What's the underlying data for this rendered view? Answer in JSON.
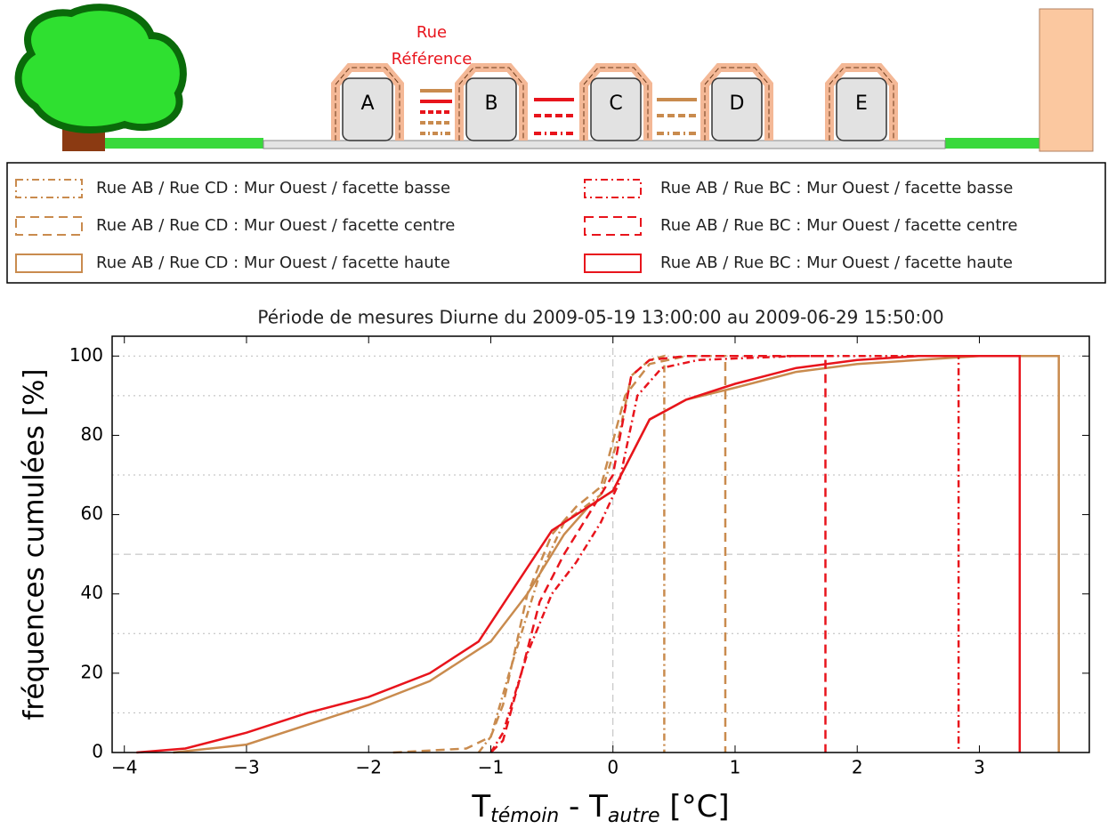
{
  "illustration": {
    "caption": [
      "Rue",
      "Référence"
    ],
    "buildings": [
      "A",
      "B",
      "C",
      "D",
      "E"
    ]
  },
  "chart_data": {
    "type": "line",
    "title": "Période de mesures Diurne du 2009-05-19 13:00:00 au 2009-06-29 15:50:00",
    "ylabel": "fréquences cumulées [%]",
    "xlabel": [
      "T",
      "témoin",
      " - T",
      "autre",
      " [°C]"
    ],
    "xlim": [
      -4.1,
      3.9
    ],
    "ylim": [
      0,
      105
    ],
    "xticks": [
      {
        "value": -4,
        "label": "−4"
      },
      {
        "value": -3,
        "label": "−3"
      },
      {
        "value": -2,
        "label": "−2"
      },
      {
        "value": -1,
        "label": "−1"
      },
      0,
      1,
      2,
      3
    ],
    "yticks": [
      0,
      20,
      40,
      60,
      80,
      100
    ],
    "grid_y": [
      10,
      30,
      70,
      90,
      100
    ],
    "reference_y": 50,
    "reference_x": 0,
    "series": [
      {
        "name": "Rue AB / Rue CD : Mur Ouest / facette basse",
        "color": "#c98b4e",
        "style": "dotted",
        "x": [
          -1.1,
          -1,
          -0.85,
          -0.6,
          -0.4,
          -0.1,
          0.05,
          0.15,
          0.3,
          0.42,
          0.42
        ],
        "values": [
          0,
          4,
          20,
          45,
          58,
          65,
          80,
          95,
          99,
          100,
          0
        ]
      },
      {
        "name": "Rue AB / Rue CD : Mur Ouest / facette centre",
        "color": "#c98b4e",
        "style": "dashed",
        "x": [
          -1.8,
          -1.2,
          -1,
          -0.9,
          -0.7,
          -0.5,
          -0.3,
          -0.1,
          0.1,
          0.3,
          0.6,
          0.92,
          0.92
        ],
        "values": [
          0,
          1,
          4,
          12,
          40,
          55,
          62,
          67,
          90,
          98,
          100,
          100,
          0
        ]
      },
      {
        "name": "Rue AB / Rue CD : Mur Ouest / facette haute",
        "color": "#c98b4e",
        "style": "solid",
        "x": [
          -3.6,
          -3,
          -2.5,
          -2,
          -1.5,
          -1,
          -0.7,
          -0.4,
          -0.2,
          0,
          0.3,
          0.6,
          1,
          1.5,
          2,
          3,
          3.65,
          3.65
        ],
        "values": [
          0,
          2,
          7,
          12,
          18,
          28,
          40,
          55,
          62,
          66,
          84,
          89,
          92,
          96,
          98,
          100,
          100,
          0
        ]
      },
      {
        "name": "Rue AB / Rue BC : Mur Ouest / facette basse",
        "color": "#e8141c",
        "style": "dotted",
        "x": [
          -1,
          -0.9,
          -0.7,
          -0.5,
          -0.3,
          -0.1,
          0.05,
          0.2,
          0.4,
          0.7,
          1.5,
          2.83,
          2.83
        ],
        "values": [
          0,
          5,
          25,
          40,
          48,
          58,
          68,
          90,
          97,
          99,
          100,
          100,
          0
        ]
      },
      {
        "name": "Rue AB / Rue BC : Mur Ouest / facette centre",
        "color": "#e8141c",
        "style": "dashed",
        "x": [
          -1,
          -0.9,
          -0.75,
          -0.6,
          -0.4,
          -0.2,
          0,
          0.15,
          0.3,
          0.6,
          1.74,
          1.74
        ],
        "values": [
          0,
          3,
          20,
          38,
          50,
          60,
          70,
          95,
          99,
          100,
          100,
          0
        ]
      },
      {
        "name": "Rue AB / Rue BC : Mur Ouest / facette haute",
        "color": "#e8141c",
        "style": "solid",
        "x": [
          -3.9,
          -3.5,
          -3,
          -2.5,
          -2,
          -1.5,
          -1.1,
          -0.8,
          -0.5,
          -0.2,
          0,
          0.3,
          0.6,
          1,
          1.5,
          2,
          2.5,
          3.33,
          3.33
        ],
        "values": [
          0,
          1,
          5,
          10,
          14,
          20,
          28,
          42,
          56,
          62,
          66,
          84,
          89,
          93,
          97,
          99,
          100,
          100,
          0
        ]
      }
    ]
  }
}
